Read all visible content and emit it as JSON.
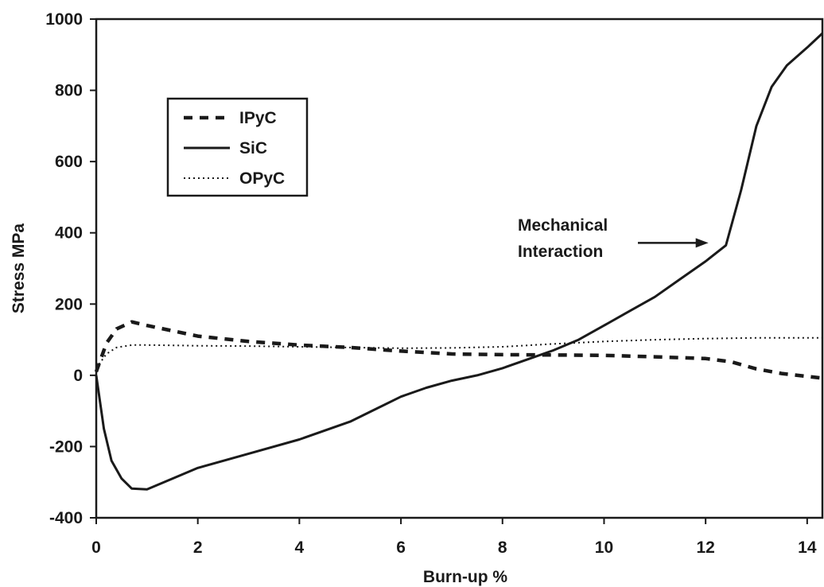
{
  "chart_data": {
    "type": "line",
    "title": "",
    "xlabel": "Burn-up %",
    "ylabel": "Stress MPa",
    "xlim": [
      0,
      14.3
    ],
    "ylim": [
      -400,
      1000
    ],
    "x_ticks": [
      0,
      2,
      4,
      6,
      8,
      10,
      12,
      14
    ],
    "x_tick_labels": [
      "0",
      "2",
      "4",
      "6",
      "8",
      "10",
      "12",
      "14"
    ],
    "y_ticks": [
      -400,
      -200,
      0,
      200,
      400,
      600,
      800,
      1000
    ],
    "y_tick_labels": [
      "-400",
      "-200",
      "0",
      "200",
      "400",
      "600",
      "800",
      "1000"
    ],
    "grid": false,
    "legend_position": "top-left",
    "series": [
      {
        "name": "IPyC",
        "style": "dashed",
        "color": "#1a1a1a",
        "x": [
          0,
          0.2,
          0.4,
          0.7,
          1.0,
          1.5,
          2,
          3,
          4,
          5,
          6,
          7,
          8,
          9,
          10,
          11,
          12,
          12.5,
          13,
          13.5,
          14.3
        ],
        "y": [
          10,
          90,
          130,
          150,
          140,
          125,
          110,
          95,
          85,
          78,
          68,
          60,
          58,
          57,
          56,
          52,
          47,
          38,
          18,
          5,
          -8
        ]
      },
      {
        "name": "SiC",
        "style": "solid",
        "color": "#1a1a1a",
        "x": [
          0,
          0.15,
          0.3,
          0.5,
          0.7,
          1.0,
          1.5,
          2,
          3,
          4,
          5,
          5.5,
          6,
          6.5,
          7,
          7.5,
          8,
          8.5,
          9,
          9.5,
          10,
          10.5,
          11,
          11.5,
          12,
          12.4,
          12.7,
          13.0,
          13.3,
          13.6,
          14.0,
          14.3
        ],
        "y": [
          0,
          -150,
          -240,
          -290,
          -318,
          -320,
          -290,
          -260,
          -220,
          -180,
          -130,
          -95,
          -60,
          -35,
          -15,
          0,
          20,
          45,
          70,
          100,
          140,
          180,
          220,
          270,
          320,
          365,
          520,
          700,
          810,
          870,
          920,
          960
        ]
      },
      {
        "name": "OPyC",
        "style": "dotted",
        "color": "#1a1a1a",
        "x": [
          0,
          0.2,
          0.4,
          0.7,
          1.0,
          1.5,
          2,
          3,
          4,
          5,
          6,
          7,
          8,
          9,
          10,
          11,
          12,
          13,
          14.3
        ],
        "y": [
          20,
          60,
          78,
          85,
          85,
          84,
          83,
          82,
          80,
          78,
          76,
          77,
          80,
          88,
          95,
          100,
          103,
          105,
          105
        ]
      }
    ],
    "annotations": [
      {
        "text_lines": [
          "Mechanical",
          "Interaction"
        ],
        "arrow_to": {
          "x": 12.4,
          "y": 365
        }
      }
    ]
  }
}
